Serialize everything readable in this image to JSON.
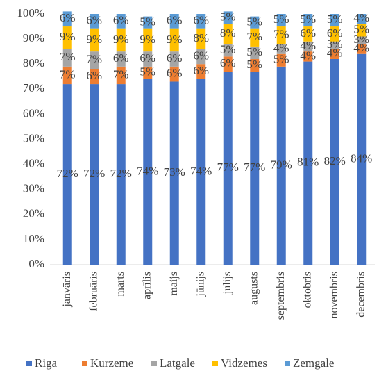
{
  "chart_data": {
    "type": "stacked_bar",
    "categories": [
      "janvāris",
      "februāris",
      "marts",
      "aprīlis",
      "maijs",
      "jūnijs",
      "jūlijs",
      "augusts",
      "septembris",
      "oktobris",
      "novembris",
      "decembris"
    ],
    "series": [
      {
        "name": "Riga",
        "color": "#4472c4",
        "values": [
          72,
          72,
          72,
          74,
          73,
          74,
          77,
          77,
          79,
          81,
          82,
          84
        ],
        "value_labels": [
          "72%",
          "72%",
          "72%",
          "74%",
          "73%",
          "74%",
          "77%",
          "77%",
          "79%",
          "81%",
          "82%",
          "84%"
        ]
      },
      {
        "name": "Kurzeme",
        "color": "#ed7d31",
        "values": [
          7,
          6,
          7,
          5,
          6,
          6,
          6,
          5,
          5,
          4,
          4,
          4
        ],
        "value_labels": [
          "7%",
          "6%",
          "7%",
          "5%",
          "6%",
          "6%",
          "6%",
          "5%",
          "5%",
          "4%",
          "4%",
          "4%"
        ]
      },
      {
        "name": "Latgale",
        "color": "#a5a5a5",
        "values": [
          7,
          7,
          6,
          6,
          6,
          6,
          5,
          5,
          4,
          4,
          3,
          3
        ],
        "value_labels": [
          "7%",
          "7%",
          "6%",
          "6%",
          "6%",
          "6%",
          "5%",
          "5%",
          "4%",
          "4%",
          "3%",
          "3%"
        ]
      },
      {
        "name": "Vidzemes",
        "color": "#ffc000",
        "values": [
          9,
          9,
          9,
          9,
          9,
          8,
          8,
          7,
          7,
          6,
          6,
          5
        ],
        "value_labels": [
          "9%",
          "9%",
          "9%",
          "9%",
          "9%",
          "8%",
          "8%",
          "7%",
          "7%",
          "6%",
          "6%",
          "5%"
        ]
      },
      {
        "name": "Zemgale",
        "color": "#5b9bd5",
        "values": [
          6,
          6,
          6,
          5,
          6,
          6,
          5,
          5,
          5,
          5,
          5,
          4
        ],
        "value_labels": [
          "6%",
          "6%",
          "6%",
          "5%",
          "6%",
          "6%",
          "5%",
          "5%",
          "5%",
          "5%",
          "5%",
          "4%"
        ]
      }
    ],
    "ylim": [
      0,
      100
    ],
    "yticks": [
      {
        "value": 0,
        "label": "0%"
      },
      {
        "value": 10,
        "label": "10%"
      },
      {
        "value": 20,
        "label": "20%"
      },
      {
        "value": 30,
        "label": "30%"
      },
      {
        "value": 40,
        "label": "40%"
      },
      {
        "value": 50,
        "label": "50%"
      },
      {
        "value": 60,
        "label": "60%"
      },
      {
        "value": 70,
        "label": "70%"
      },
      {
        "value": 80,
        "label": "80%"
      },
      {
        "value": 90,
        "label": "90%"
      },
      {
        "value": 100,
        "label": "100%"
      }
    ],
    "legend": "bottom"
  }
}
